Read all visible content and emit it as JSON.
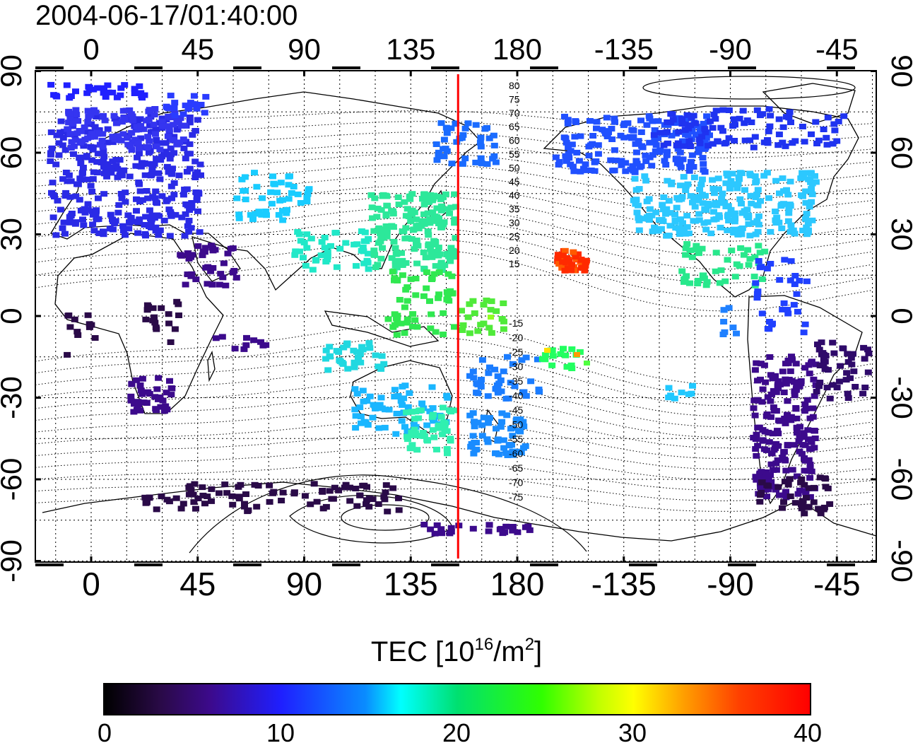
{
  "title": "2004-06-17/01:40:00",
  "colors": {
    "meridian": "#ff0000",
    "frame": "#000000"
  },
  "map": {
    "lon_ticks_top": [
      "0",
      "45",
      "90",
      "135",
      "180",
      "-135",
      "-90",
      "-45"
    ],
    "lon_ticks_bottom": [
      "0",
      "45",
      "90",
      "135",
      "180",
      "-135",
      "-90",
      "-45"
    ],
    "lat_ticks_left": [
      "90",
      "60",
      "30",
      "0",
      "-30",
      "-60",
      "-90"
    ],
    "lat_ticks_right": [
      "90",
      "60",
      "30",
      "0",
      "-30",
      "-60",
      "-90"
    ],
    "contour_labels": [
      "80",
      "75",
      "70",
      "65",
      "60",
      "55",
      "50",
      "45",
      "40",
      "35",
      "30",
      "25",
      "20",
      "15",
      "-15",
      "-20",
      "-25",
      "-30",
      "-35",
      "-40",
      "-45",
      "-50",
      "-55",
      "-60",
      "-65",
      "-70",
      "-75"
    ],
    "meridian_lon": 155
  },
  "colorbar": {
    "title_main": "TEC  [10",
    "title_exp": "16",
    "title_unit": "/m",
    "title_exp2": "2",
    "title_end": "]",
    "min": 0,
    "max": 40,
    "ticks": [
      "0",
      "10",
      "20",
      "30",
      "40"
    ]
  }
}
